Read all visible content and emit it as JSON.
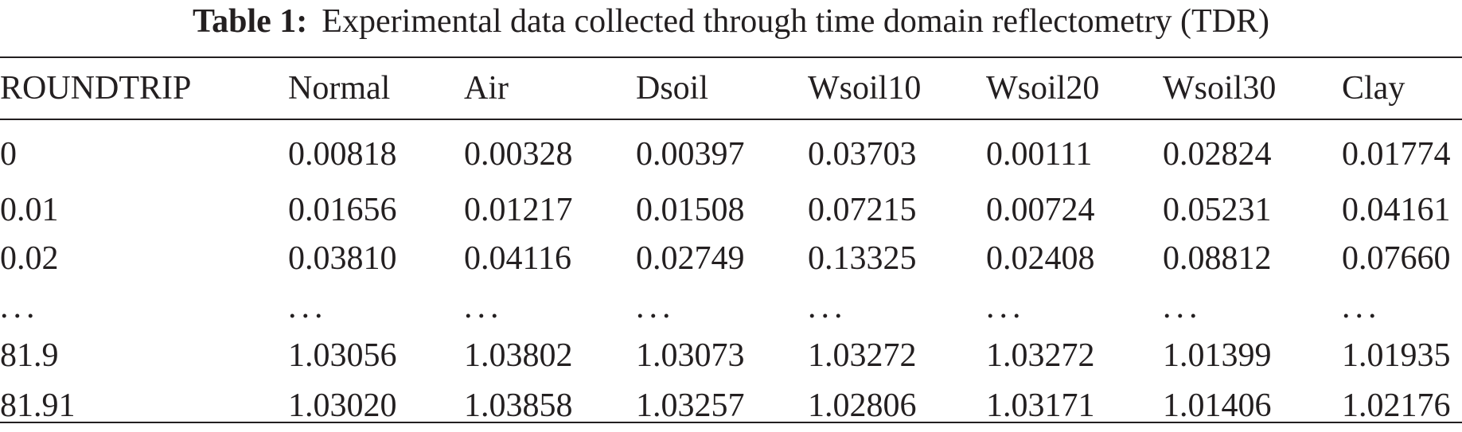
{
  "caption": {
    "label": "Table 1:",
    "text": "Experimental data collected through time domain reflectometry (TDR)"
  },
  "table": {
    "columns": [
      "ROUNDTRIP",
      "Normal",
      "Air",
      "Dsoil",
      "Wsoil10",
      "Wsoil20",
      "Wsoil30",
      "Clay"
    ],
    "rows": [
      [
        "0",
        "0.00818",
        "0.00328",
        "0.00397",
        "0.03703",
        "0.00111",
        "0.02824",
        "0.01774"
      ],
      [
        "0.01",
        "0.01656",
        "0.01217",
        "0.01508",
        "0.07215",
        "0.00724",
        "0.05231",
        "0.04161"
      ],
      [
        "0.02",
        "0.03810",
        "0.04116",
        "0.02749",
        "0.13325",
        "0.02408",
        "0.08812",
        "0.07660"
      ],
      [
        "...",
        "...",
        "...",
        "...",
        "...",
        "...",
        "...",
        "..."
      ],
      [
        "81.9",
        "1.03056",
        "1.03802",
        "1.03073",
        "1.03272",
        "1.03272",
        "1.01399",
        "1.01935"
      ],
      [
        "81.91",
        "1.03020",
        "1.03858",
        "1.03257",
        "1.02806",
        "1.03171",
        "1.01406",
        "1.02176"
      ]
    ]
  }
}
